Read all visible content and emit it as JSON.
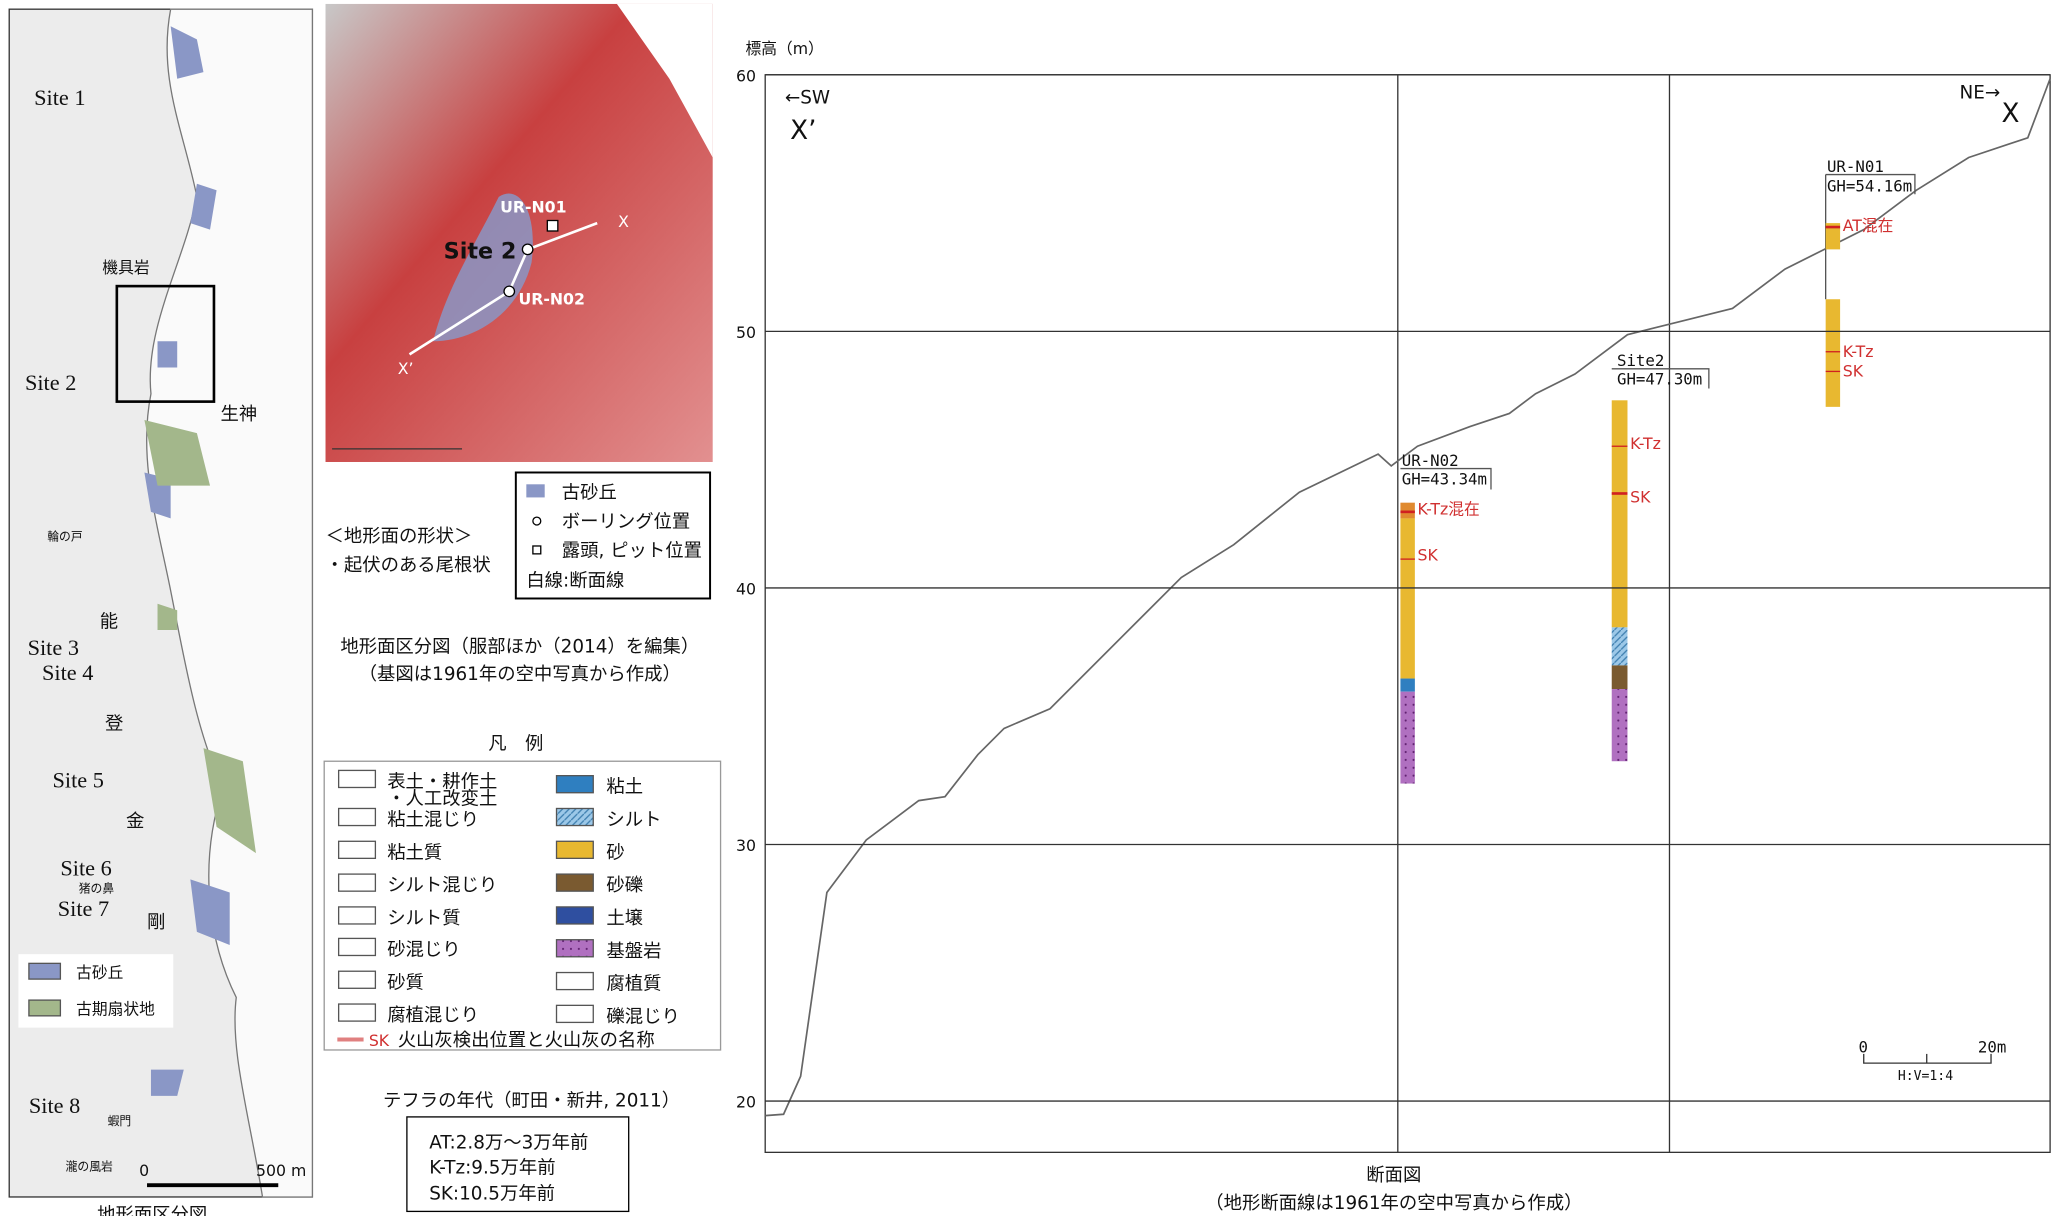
{
  "map": {
    "sites": [
      "Site 1",
      "Site 2",
      "Site 3",
      "Site 4",
      "Site 5",
      "Site 6",
      "Site 7",
      "Site 8"
    ],
    "places": [
      "機具岩",
      "生神",
      "能",
      "登",
      "金",
      "剛",
      "輪の戸",
      "猪の鼻",
      "蝦門",
      "瀧の風岩"
    ],
    "legend": [
      {
        "label": "古砂丘",
        "color": "#8a97c6"
      },
      {
        "label": "古期扇状地",
        "color": "#a3b78b"
      }
    ],
    "scale": [
      "0",
      "500 m"
    ],
    "caption": "地形面区分図"
  },
  "aerial": {
    "labels": [
      "UR-N01",
      "Site 2",
      "UR-N02",
      "X",
      "X’"
    ]
  },
  "key": {
    "items": [
      "古砂丘",
      "ボーリング位置",
      "露頭, ピット位置",
      "白線:断面線"
    ]
  },
  "shape_note": [
    "＜地形面の形状＞",
    "・起伏のある尾根状"
  ],
  "map_caption": [
    "地形面区分図（服部ほか（2014）を編集）",
    "（基図は1961年の空中写真から作成）"
  ],
  "legend": {
    "title": "凡　例",
    "left": [
      "表土・耕作土",
      "・人工改変土",
      "粘土混じり",
      "粘土質",
      "シルト混じり",
      "シルト質",
      "砂混じり",
      "砂質",
      "腐植混じり"
    ],
    "right": [
      "粘土",
      "シルト",
      "砂",
      "砂礫",
      "土壌",
      "基盤岩",
      "腐植質",
      "礫混じり"
    ],
    "ash_code": "SK",
    "ash_text": "火山灰検出位置と火山灰の名称"
  },
  "tephra": {
    "title": "テフラの年代（町田・新井, 2011）",
    "rows": [
      "AT:2.8万～3万年前",
      "K-Tz:9.5万年前",
      "SK:10.5万年前"
    ]
  },
  "section": {
    "y_label": "標高（m）",
    "ylim": [
      18,
      60
    ],
    "yticks": [
      20,
      30,
      40,
      50,
      60
    ],
    "left_dir": "←SW",
    "left_end": "X’",
    "right_dir": "NE→",
    "right_end": "X",
    "boreholes": [
      {
        "name": "UR-N02",
        "gh": "GH=43.34m",
        "labels": [
          "K-Tz混在",
          "SK"
        ]
      },
      {
        "name": "Site2",
        "gh": "GH=47.30m",
        "labels": [
          "K-Tz",
          "SK"
        ]
      },
      {
        "name": "UR-N01",
        "gh": "GH=54.16m",
        "labels": [
          "AT混在",
          "K-Tz",
          "SK"
        ]
      }
    ],
    "scale": [
      "0",
      "20m",
      "H:V=1:4"
    ],
    "caption": [
      "断面図",
      "（地形断面線は1961年の空中写真から作成）"
    ]
  }
}
